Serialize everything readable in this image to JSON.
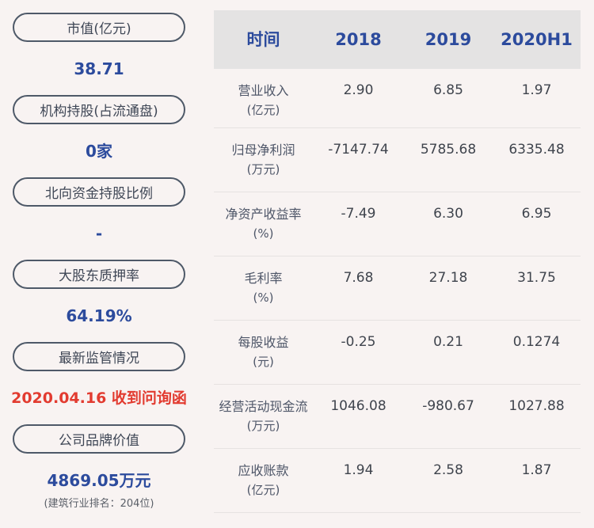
{
  "colors": {
    "page_bg": "#f8f3f2",
    "header_bg": "#e4e3e3",
    "accent_blue": "#2c4b9d",
    "alert_red": "#e23b30",
    "pill_border": "#4e5968",
    "divider": "#e6e2e1"
  },
  "sidebar": {
    "items": [
      {
        "label": "市值(亿元)",
        "value": "38.71"
      },
      {
        "label": "机构持股(占流通盘)",
        "value": "0家"
      },
      {
        "label": "北向资金持股比例",
        "value": "-"
      },
      {
        "label": "大股东质押率",
        "value": "64.19%"
      },
      {
        "label": "最新监管情况",
        "value": "2020.04.16 收到问询函"
      },
      {
        "label": "公司品牌价值",
        "value": "4869.05万元",
        "subtext": "(建筑行业排名：204位)"
      }
    ]
  },
  "table": {
    "header": {
      "col0": "时间",
      "col1": "2018",
      "col2": "2019",
      "col3": "2020H1"
    },
    "rows": [
      {
        "label": "营业收入",
        "unit": "(亿元)",
        "values": [
          "2.90",
          "6.85",
          "1.97"
        ]
      },
      {
        "label": "归母净利润",
        "unit": "(万元)",
        "values": [
          "-7147.74",
          "5785.68",
          "6335.48"
        ]
      },
      {
        "label": "净资产收益率",
        "unit": "(%)",
        "values": [
          "-7.49",
          "6.30",
          "6.95"
        ]
      },
      {
        "label": "毛利率",
        "unit": "(%)",
        "values": [
          "7.68",
          "27.18",
          "31.75"
        ]
      },
      {
        "label": "每股收益",
        "unit": "(元)",
        "values": [
          "-0.25",
          "0.21",
          "0.1274"
        ]
      },
      {
        "label": "经营活动现金流",
        "unit": "(万元)",
        "values": [
          "1046.08",
          "-980.67",
          "1027.88"
        ]
      },
      {
        "label": "应收账款",
        "unit": "(亿元)",
        "values": [
          "1.94",
          "2.58",
          "1.87"
        ]
      }
    ]
  },
  "chart_data": {
    "type": "table",
    "title": "",
    "columns": [
      "时间",
      "2018",
      "2019",
      "2020H1"
    ],
    "rows": [
      {
        "metric": "营业收入(亿元)",
        "values": [
          2.9,
          6.85,
          1.97
        ]
      },
      {
        "metric": "归母净利润(万元)",
        "values": [
          -7147.74,
          5785.68,
          6335.48
        ]
      },
      {
        "metric": "净资产收益率(%)",
        "values": [
          -7.49,
          6.3,
          6.95
        ]
      },
      {
        "metric": "毛利率(%)",
        "values": [
          7.68,
          27.18,
          31.75
        ]
      },
      {
        "metric": "每股收益(元)",
        "values": [
          -0.25,
          0.21,
          0.1274
        ]
      },
      {
        "metric": "经营活动现金流(万元)",
        "values": [
          1046.08,
          -980.67,
          1027.88
        ]
      },
      {
        "metric": "应收账款(亿元)",
        "values": [
          1.94,
          2.58,
          1.87
        ]
      }
    ],
    "stat_cards": [
      {
        "metric": "市值(亿元)",
        "value": "38.71"
      },
      {
        "metric": "机构持股(占流通盘)",
        "value": "0家"
      },
      {
        "metric": "北向资金持股比例",
        "value": "-"
      },
      {
        "metric": "大股东质押率",
        "value": "64.19%"
      },
      {
        "metric": "最新监管情况",
        "value": "2020.04.16 收到问询函"
      },
      {
        "metric": "公司品牌价值",
        "value": "4869.05万元",
        "note": "(建筑行业排名：204位)"
      }
    ]
  }
}
